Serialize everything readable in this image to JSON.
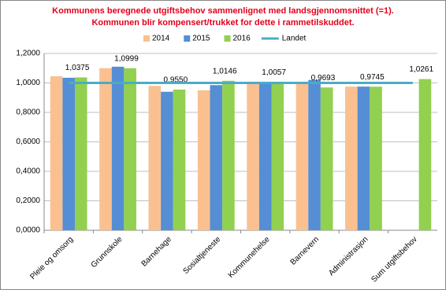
{
  "chart_data": {
    "type": "bar",
    "title": [
      "Kommunens beregnede utgiftsbehov sammenlignet med landsgjennomsnittet (=1).",
      "Kommunen blir kompensert/trukket for dette i rammetilskuddet."
    ],
    "categories": [
      "Pleie og omsorg",
      "Grunnskole",
      "Barnehage",
      "Sosialtjeneste",
      "Kommunehelse",
      "Barnevern",
      "Administrasjon",
      "Sum utgiftsbehov"
    ],
    "series": [
      {
        "name": "2014",
        "color": "#fac090",
        "values": [
          1.045,
          1.1,
          0.98,
          0.95,
          1.0,
          0.995,
          0.975,
          null
        ]
      },
      {
        "name": "2015",
        "color": "#558ed5",
        "values": [
          1.035,
          1.11,
          0.94,
          0.985,
          1.0,
          1.02,
          0.975,
          null
        ]
      },
      {
        "name": "2016",
        "color": "#92d050",
        "values": [
          1.0375,
          1.0999,
          0.955,
          1.0146,
          1.0057,
          0.9693,
          0.9745,
          1.0261
        ],
        "value_labels": [
          "1,0375",
          "1,0999",
          "0,9550",
          "1,0146",
          "1,0057",
          "0,9693",
          "0,9745",
          "1,0261"
        ]
      },
      {
        "name": "Landet",
        "type": "line",
        "color": "#4bacc6",
        "values": [
          1,
          1,
          1,
          1,
          1,
          1,
          1,
          1
        ]
      }
    ],
    "ylim": [
      0,
      1.2
    ],
    "yticks": [
      {
        "value": 0,
        "label": "0,0000"
      },
      {
        "value": 0.2,
        "label": "0,2000"
      },
      {
        "value": 0.4,
        "label": "0,4000"
      },
      {
        "value": 0.6,
        "label": "0,6000"
      },
      {
        "value": 0.8,
        "label": "0,8000"
      },
      {
        "value": 1.0,
        "label": "1,0000"
      },
      {
        "value": 1.2,
        "label": "1,2000"
      }
    ],
    "grid": true
  }
}
